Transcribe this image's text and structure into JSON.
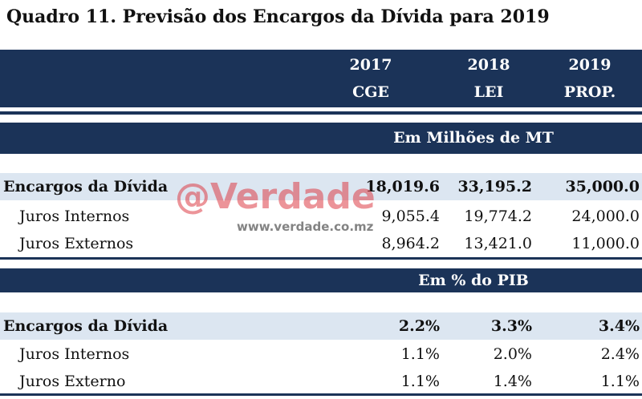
{
  "title": "Quadro 11. Previsão dos Encargos da Dívida para 2019",
  "header": {
    "years": [
      "2017",
      "2018",
      "2019"
    ],
    "labels": [
      "CGE",
      "LEI",
      "PROP."
    ]
  },
  "sections": [
    {
      "unit": "Em Milhões de MT",
      "rows": [
        {
          "label": "Encargos da Dívida",
          "values": [
            "18,019.6",
            "33,195.2",
            "35,000.0"
          ]
        },
        {
          "label": "Juros Internos",
          "values": [
            "9,055.4",
            "19,774.2",
            "24,000.0"
          ]
        },
        {
          "label": "Juros Externos",
          "values": [
            "8,964.2",
            "13,421.0",
            "11,000.0"
          ]
        }
      ]
    },
    {
      "unit": "Em % do PIB",
      "rows": [
        {
          "label": "Encargos da Dívida",
          "values": [
            "2.2%",
            "3.3%",
            "3.4%"
          ]
        },
        {
          "label": "Juros Internos",
          "values": [
            "1.1%",
            "2.0%",
            "2.4%"
          ]
        },
        {
          "label": "Juros Externo",
          "values": [
            "1.1%",
            "1.4%",
            "1.1%"
          ]
        }
      ]
    }
  ],
  "watermark": {
    "brand": "@Verdade",
    "url": "www.verdade.co.mz"
  }
}
